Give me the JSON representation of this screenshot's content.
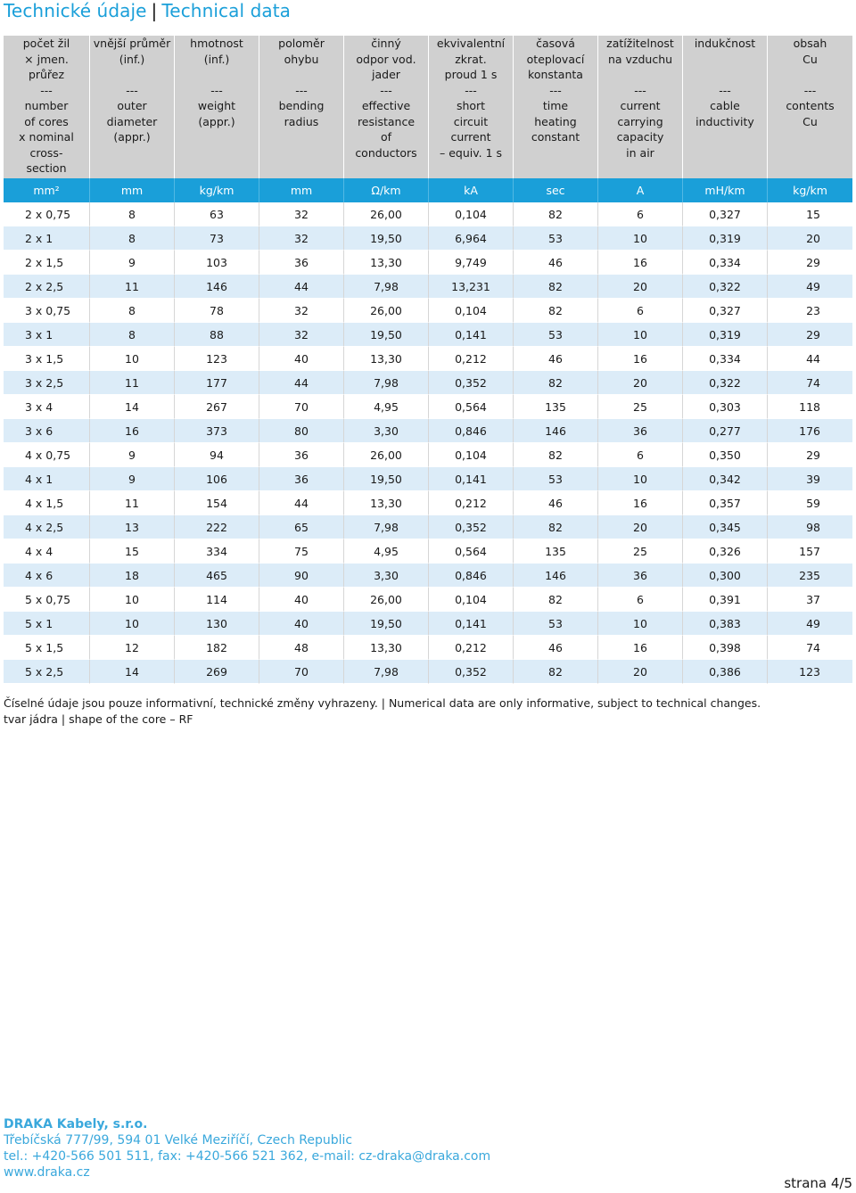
{
  "title": {
    "cz": "Technické údaje",
    "sep": "|",
    "en": "Technical data"
  },
  "headers": [
    [
      "počet žil",
      "× jmen.",
      "průřez",
      "---",
      "number",
      "of cores",
      "x nominal",
      "cross-",
      "section"
    ],
    [
      "vnější průměr",
      "(inf.)",
      "",
      "---",
      "outer",
      "diameter",
      "(appr.)"
    ],
    [
      "hmotnost",
      "(inf.)",
      "",
      "---",
      "weight",
      "(appr.)"
    ],
    [
      "poloměr",
      "ohybu",
      "",
      "---",
      "bending",
      "radius"
    ],
    [
      "činný",
      "odpor vod.",
      "jader",
      "---",
      "effective",
      "resistance",
      "of",
      "conductors"
    ],
    [
      "ekvivalentní",
      "zkrat.",
      "proud 1 s",
      "---",
      "short",
      "circuit",
      "current",
      "– equiv. 1 s"
    ],
    [
      "časová",
      "oteplovací",
      "konstanta",
      "---",
      "time",
      "heating",
      "constant"
    ],
    [
      "zatížitelnost",
      "na vzduchu",
      "",
      "---",
      "current",
      "carrying",
      "capacity",
      "in air"
    ],
    [
      "indukčnost",
      "",
      "",
      "---",
      "cable",
      "inductivity"
    ],
    [
      "obsah",
      "Cu",
      "",
      "---",
      "contents",
      "Cu"
    ]
  ],
  "units": [
    "mm²",
    "mm",
    "kg/km",
    "mm",
    "Ω/km",
    "kA",
    "sec",
    "A",
    "mH/km",
    "kg/km"
  ],
  "rows": [
    [
      "2 x 0,75",
      "8",
      "63",
      "32",
      "26,00",
      "0,104",
      "82",
      "6",
      "0,327",
      "15"
    ],
    [
      "2 x 1",
      "8",
      "73",
      "32",
      "19,50",
      "6,964",
      "53",
      "10",
      "0,319",
      "20"
    ],
    [
      "2 x 1,5",
      "9",
      "103",
      "36",
      "13,30",
      "9,749",
      "46",
      "16",
      "0,334",
      "29"
    ],
    [
      "2 x 2,5",
      "11",
      "146",
      "44",
      "7,98",
      "13,231",
      "82",
      "20",
      "0,322",
      "49"
    ],
    [
      "3 x 0,75",
      "8",
      "78",
      "32",
      "26,00",
      "0,104",
      "82",
      "6",
      "0,327",
      "23"
    ],
    [
      "3 x 1",
      "8",
      "88",
      "32",
      "19,50",
      "0,141",
      "53",
      "10",
      "0,319",
      "29"
    ],
    [
      "3 x 1,5",
      "10",
      "123",
      "40",
      "13,30",
      "0,212",
      "46",
      "16",
      "0,334",
      "44"
    ],
    [
      "3 x 2,5",
      "11",
      "177",
      "44",
      "7,98",
      "0,352",
      "82",
      "20",
      "0,322",
      "74"
    ],
    [
      "3 x 4",
      "14",
      "267",
      "70",
      "4,95",
      "0,564",
      "135",
      "25",
      "0,303",
      "118"
    ],
    [
      "3 x 6",
      "16",
      "373",
      "80",
      "3,30",
      "0,846",
      "146",
      "36",
      "0,277",
      "176"
    ],
    [
      "4 x 0,75",
      "9",
      "94",
      "36",
      "26,00",
      "0,104",
      "82",
      "6",
      "0,350",
      "29"
    ],
    [
      "4 x 1",
      "9",
      "106",
      "36",
      "19,50",
      "0,141",
      "53",
      "10",
      "0,342",
      "39"
    ],
    [
      "4 x 1,5",
      "11",
      "154",
      "44",
      "13,30",
      "0,212",
      "46",
      "16",
      "0,357",
      "59"
    ],
    [
      "4 x 2,5",
      "13",
      "222",
      "65",
      "7,98",
      "0,352",
      "82",
      "20",
      "0,345",
      "98"
    ],
    [
      "4 x 4",
      "15",
      "334",
      "75",
      "4,95",
      "0,564",
      "135",
      "25",
      "0,326",
      "157"
    ],
    [
      "4 x 6",
      "18",
      "465",
      "90",
      "3,30",
      "0,846",
      "146",
      "36",
      "0,300",
      "235"
    ],
    [
      "5 x 0,75",
      "10",
      "114",
      "40",
      "26,00",
      "0,104",
      "82",
      "6",
      "0,391",
      "37"
    ],
    [
      "5 x 1",
      "10",
      "130",
      "40",
      "19,50",
      "0,141",
      "53",
      "10",
      "0,383",
      "49"
    ],
    [
      "5 x 1,5",
      "12",
      "182",
      "48",
      "13,30",
      "0,212",
      "46",
      "16",
      "0,398",
      "74"
    ],
    [
      "5 x 2,5",
      "14",
      "269",
      "70",
      "7,98",
      "0,352",
      "82",
      "20",
      "0,386",
      "123"
    ]
  ],
  "notes": [
    "Číselné údaje jsou pouze informativní, technické změny vyhrazeny. | Numerical data are only informative, subject to technical changes.",
    "tvar jádra | shape of the core – RF"
  ],
  "footer": {
    "company": "DRAKA Kabely, s.r.o.",
    "address": "Třebíčská 777/99, 594 01 Velké Meziříčí, Czech Republic",
    "contact": "tel.: +420-566 501 511, fax: +420-566 521 362, e-mail: cz-draka@draka.com",
    "web": "www.draka.cz"
  },
  "page": "strana 4/5"
}
